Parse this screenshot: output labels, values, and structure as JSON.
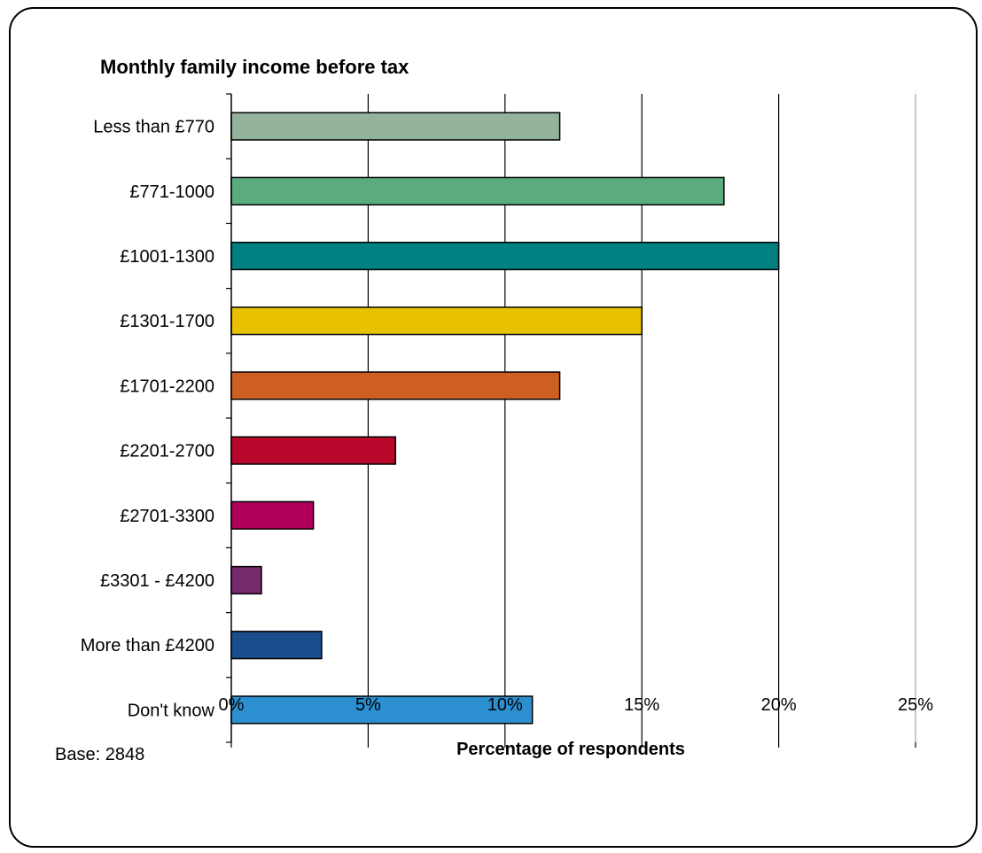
{
  "chart_data": {
    "type": "bar",
    "orientation": "horizontal",
    "title": "Monthly family income before tax",
    "categories": [
      "Less than £770",
      "£771-1000",
      "£1001-1300",
      "£1301-1700",
      "£1701-2200",
      "£2201-2700",
      "£2701-3300",
      "£3301 - £4200",
      "More than £4200",
      "Don't know"
    ],
    "values": [
      12,
      18,
      20,
      15,
      12,
      6,
      3,
      1.1,
      3.3,
      11
    ],
    "colors": [
      "#94b39c",
      "#5aab7e",
      "#008080",
      "#e8c200",
      "#cd5f20",
      "#b8072a",
      "#b0005a",
      "#762a6e",
      "#1a4d8c",
      "#2b8fd0"
    ],
    "xlabel": "Percentage of respondents",
    "ylabel": "",
    "xlim": [
      0,
      25
    ],
    "xticks": [
      "0%",
      "5%",
      "10%",
      "15%",
      "20%",
      "25%"
    ],
    "grid": true,
    "note": "Base: 2848"
  }
}
